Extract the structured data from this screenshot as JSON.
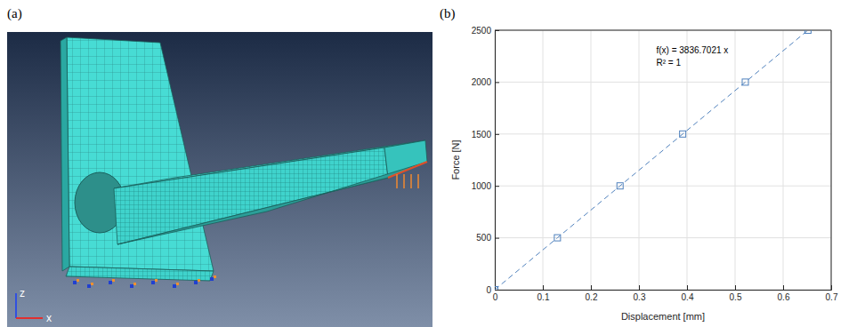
{
  "figure": {
    "panel_labels": [
      "(a)",
      "(b)"
    ],
    "triad": [
      "z",
      "x"
    ]
  },
  "chart_data": {
    "type": "scatter",
    "x_label": "Displacement [mm]",
    "y_label": "Force [N]",
    "annotations": [
      "f(x) = 3836.7021 x",
      "R² = 1"
    ],
    "x": [
      0,
      0.1303,
      0.2606,
      0.391,
      0.5213,
      0.6516
    ],
    "series": [
      {
        "color": "#4f81bd",
        "marker": "square",
        "line_style": "dashed",
        "values": [
          0,
          500,
          1000,
          1500,
          2000,
          2500
        ]
      }
    ],
    "xlim": [
      0,
      0.7
    ],
    "xticks": [
      0,
      0.1,
      0.2,
      0.3,
      0.4,
      0.5,
      0.6,
      0.7
    ],
    "ylim": [
      0,
      2500
    ],
    "yticks": [
      0,
      500,
      1000,
      1500,
      2000,
      2500
    ],
    "grid": true
  }
}
